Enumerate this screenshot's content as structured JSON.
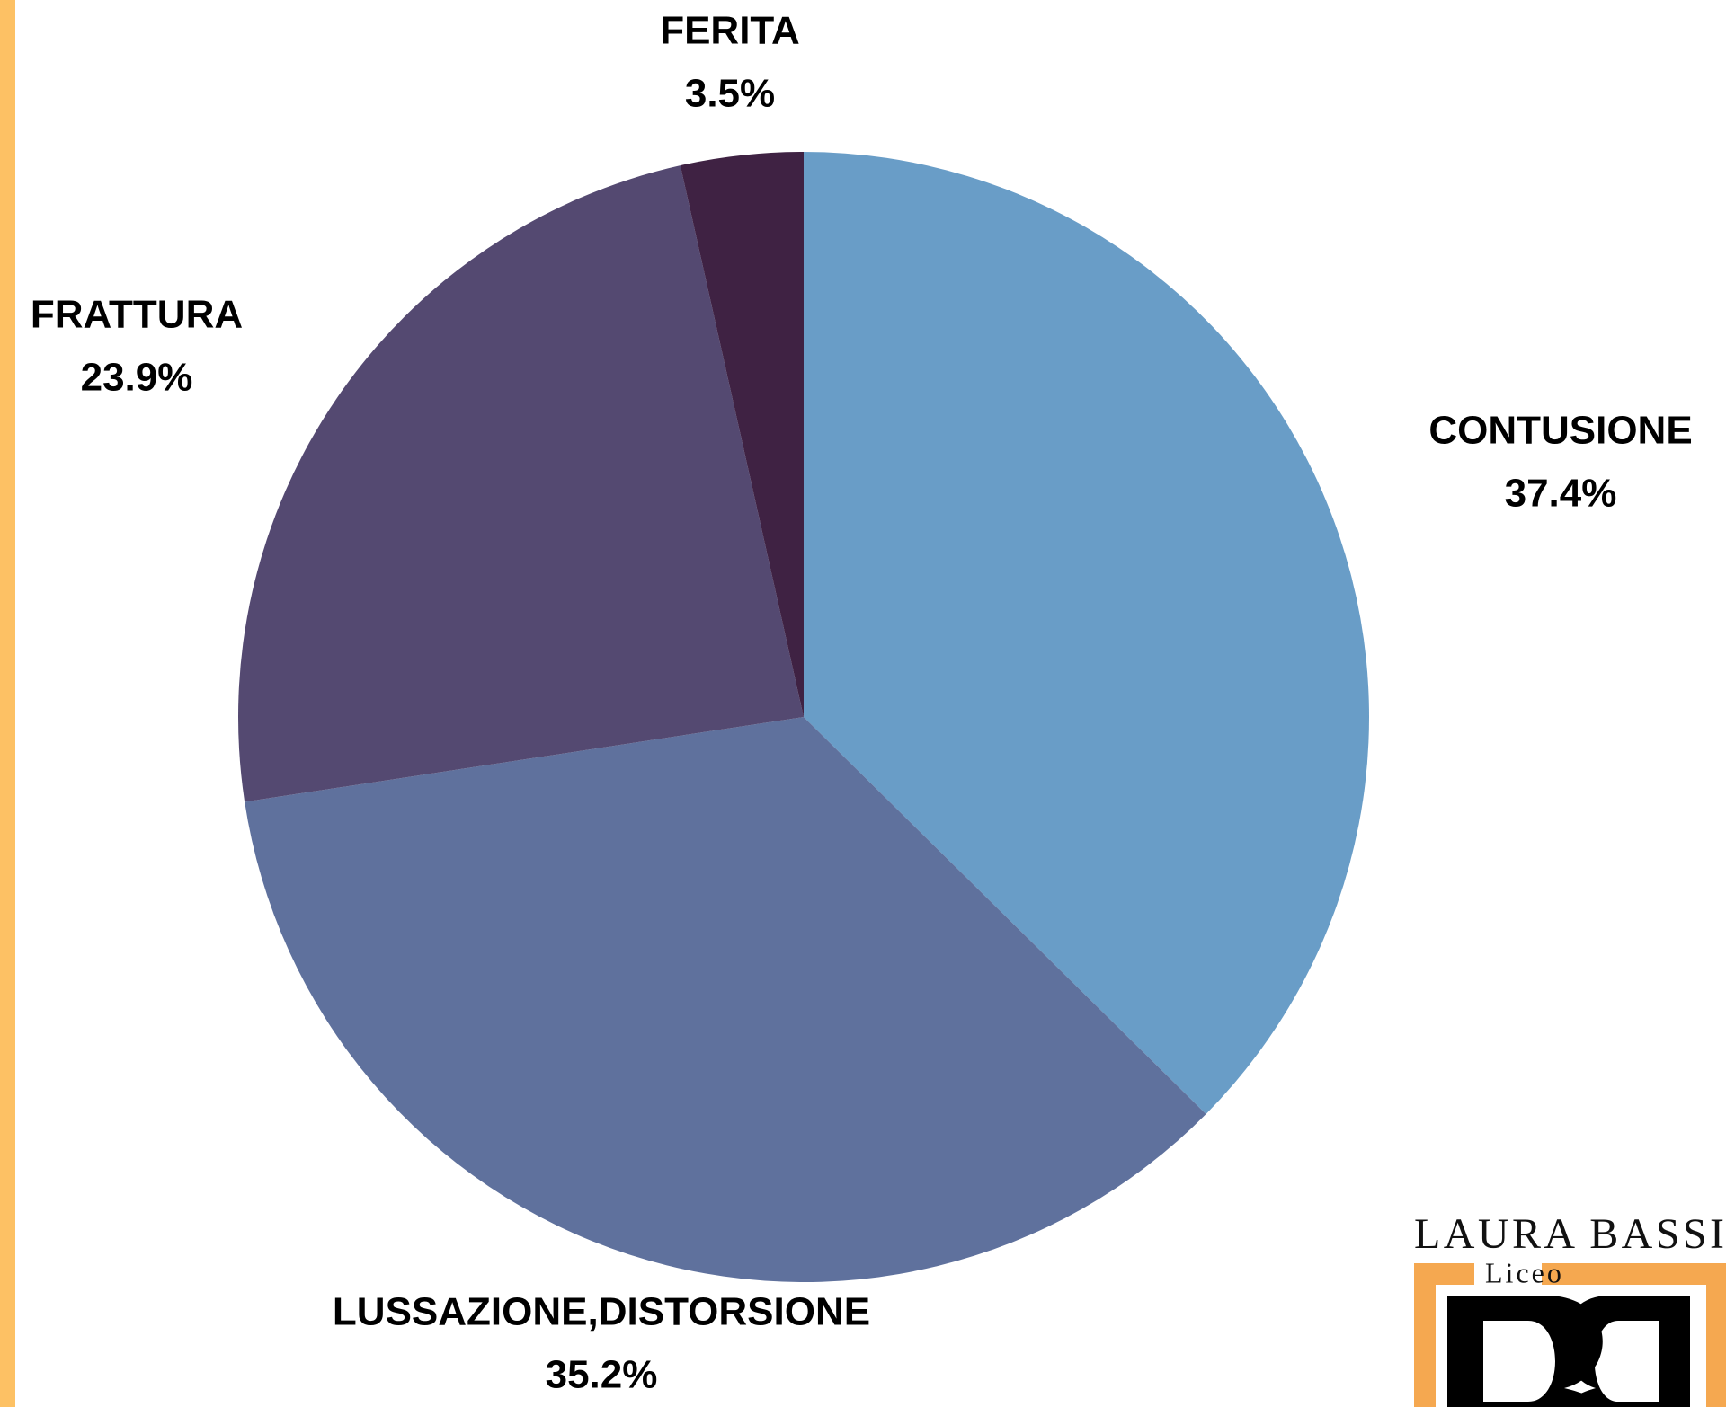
{
  "chart_data": {
    "type": "pie",
    "categories": [
      "CONTUSIONE",
      "LUSSAZIONE,DISTORSIONE",
      "FRATTURA",
      "FERITA"
    ],
    "values": [
      37.4,
      35.2,
      23.9,
      3.5
    ],
    "value_labels": [
      "37.4%",
      "35.2%",
      "23.9%",
      "3.5%"
    ],
    "colors": [
      "#699dc7",
      "#5f719d",
      "#544971",
      "#3f2243"
    ]
  },
  "logo": {
    "title": "LAURA BASSI",
    "subtitle": "Liceo"
  }
}
